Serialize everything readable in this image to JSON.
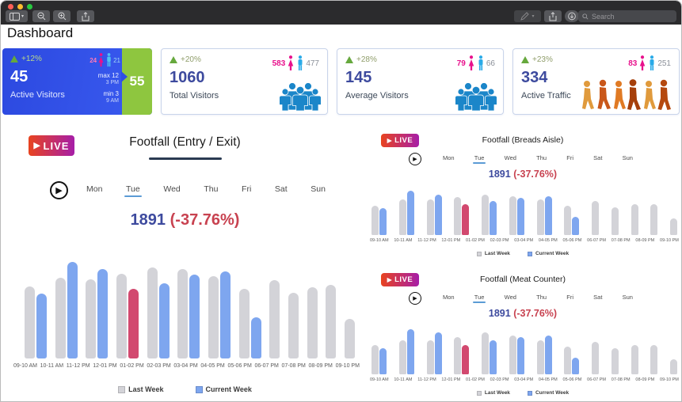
{
  "window": {
    "search_placeholder": "Search"
  },
  "page_title": "Dashboard",
  "kpis": [
    {
      "change": "+12%",
      "value": "45",
      "label": "Active Visitors",
      "female_count": "24",
      "male_count": "21",
      "max_text": "max 12",
      "max_time": "3 PM",
      "min_text": "min 3",
      "min_time": "9 AM",
      "exit_value": "55"
    },
    {
      "change": "+20%",
      "value": "1060",
      "label": "Total Visitors",
      "female_count": "583",
      "male_count": "477"
    },
    {
      "change": "+28%",
      "value": "145",
      "label": "Average Visitors",
      "female_count": "79",
      "male_count": "66"
    },
    {
      "change": "+23%",
      "value": "334",
      "label": "Active Traffic",
      "female_count": "83",
      "male_count": "251"
    }
  ],
  "charts": {
    "main": {
      "type": "bar",
      "live_label": "LIVE",
      "title": "Footfall (Entry / Exit)",
      "days": [
        "Mon",
        "Tue",
        "Wed",
        "Thu",
        "Fri",
        "Sat",
        "Sun"
      ],
      "selected_day": "Tue",
      "value": "1891",
      "change": "(-37.76%)",
      "categories": [
        "09-10 AM",
        "10-11 AM",
        "11-12 PM",
        "12-01 PM",
        "01-02 PM",
        "02-03 PM",
        "03-04 PM",
        "04-05 PM",
        "05-06 PM",
        "06-07 PM",
        "07-08 PM",
        "08-09 PM",
        "09-10 PM"
      ],
      "series": [
        {
          "name": "Last Week",
          "values": [
            75,
            84,
            82,
            88,
            94,
            93,
            85,
            72,
            81,
            68,
            74,
            76,
            41
          ]
        },
        {
          "name": "Current Week",
          "values": [
            67,
            100,
            93,
            72,
            78,
            87,
            90,
            43,
            0,
            0,
            0,
            0,
            0
          ]
        }
      ],
      "highlight_index": 3,
      "legend": [
        "Last Week",
        "Current Week"
      ]
    },
    "breads": {
      "type": "bar",
      "live_label": "LIVE",
      "title": "Footfall (Breads Aisle)",
      "days": [
        "Mon",
        "Tue",
        "Wed",
        "Thu",
        "Fri",
        "Sat",
        "Sun"
      ],
      "selected_day": "Tue",
      "value": "1891",
      "change": "(-37.76%)",
      "categories": [
        "09-10 AM",
        "10-11 AM",
        "11-12 PM",
        "12-01 PM",
        "01-02 PM",
        "02-03 PM",
        "03-04 PM",
        "04-05 PM",
        "05-06 PM",
        "06-07 PM",
        "07-08 PM",
        "08-09 PM",
        "09-10 PM"
      ],
      "series": [
        {
          "name": "Last Week",
          "values": [
            62,
            75,
            75,
            80,
            85,
            82,
            75,
            62,
            72,
            58,
            65,
            65,
            35
          ]
        },
        {
          "name": "Current Week",
          "values": [
            57,
            93,
            85,
            65,
            72,
            78,
            82,
            38,
            0,
            0,
            0,
            0,
            0
          ]
        }
      ],
      "highlight_index": 3,
      "legend": [
        "Last Week",
        "Current Week"
      ]
    },
    "meat": {
      "type": "bar",
      "live_label": "LIVE",
      "title": "Footfall (Meat Counter)",
      "days": [
        "Mon",
        "Tue",
        "Wed",
        "Thu",
        "Fri",
        "Sat",
        "Sun"
      ],
      "selected_day": "Tue",
      "value": "1891",
      "change": "(-37.76%)",
      "categories": [
        "09-10 AM",
        "10-11 AM",
        "11-12 PM",
        "12-01 PM",
        "01-02 PM",
        "02-03 PM",
        "03-04 PM",
        "04-05 PM",
        "05-06 PM",
        "06-07 PM",
        "07-08 PM",
        "08-09 PM",
        "09-10 PM"
      ],
      "series": [
        {
          "name": "Last Week",
          "values": [
            62,
            72,
            72,
            78,
            88,
            82,
            72,
            58,
            68,
            55,
            62,
            62,
            32
          ]
        },
        {
          "name": "Current Week",
          "values": [
            55,
            95,
            88,
            62,
            72,
            78,
            82,
            35,
            0,
            0,
            0,
            0,
            0
          ]
        }
      ],
      "highlight_index": 3,
      "legend": [
        "Last Week",
        "Current Week"
      ]
    }
  },
  "colors": {
    "last_week": "#d3d3d8",
    "current_week": "#7ea6ef",
    "highlight": "#d2496f",
    "value_indigo": "#3d4a9e",
    "change_red": "#c84250",
    "live_from": "#e8431f",
    "live_to": "#a61ea8",
    "kpi_blue": "#3353e9",
    "kpi_green": "#8ec63f",
    "female_pink": "#e8118c",
    "male_blue": "#2aabe8",
    "group_blue": "#1b86c9",
    "crowd_orange": "#d2691e",
    "up_green": "#66a83d",
    "day_underline": "#5b9bd5"
  }
}
